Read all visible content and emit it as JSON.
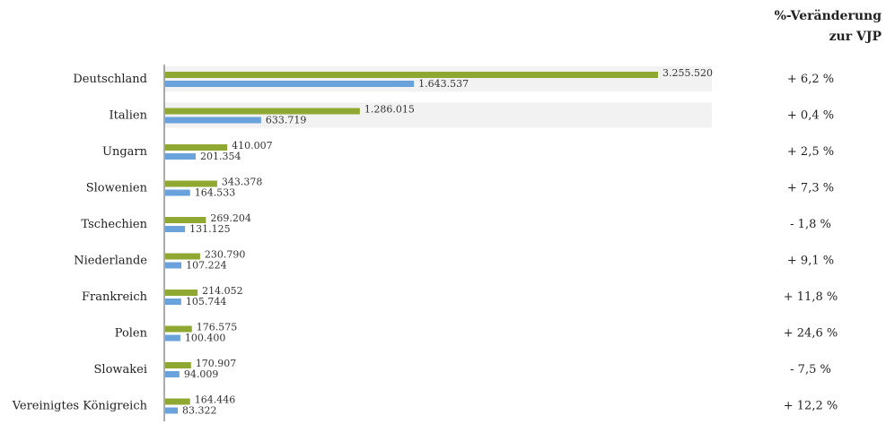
{
  "chart_data": {
    "type": "bar",
    "orientation": "horizontal",
    "change_header_line1": "%-Veränderung",
    "change_header_line2": "zur VJP",
    "categories": [
      "Deutschland",
      "Italien",
      "Ungarn",
      "Slowenien",
      "Tschechien",
      "Niederlande",
      "Frankreich",
      "Polen",
      "Slowakei",
      "Vereinigtes Königreich"
    ],
    "series": [
      {
        "color": "#8fa832",
        "values": [
          3255520,
          1286015,
          410007,
          343378,
          269204,
          230790,
          214052,
          176575,
          170907,
          164446
        ],
        "labels": [
          "3.255.520",
          "1.286.015",
          "410.007",
          "343.378",
          "269.204",
          "230.790",
          "214.052",
          "176.575",
          "170.907",
          "164.446"
        ]
      },
      {
        "color": "#6aa3dc",
        "values": [
          1643537,
          633719,
          201354,
          164533,
          131125,
          107224,
          105744,
          100400,
          94009,
          83322
        ],
        "labels": [
          "1.643.537",
          "633.719",
          "201.354",
          "164.533",
          "131.125",
          "107.224",
          "105.744",
          "100.400",
          "94.009",
          "83.322"
        ]
      }
    ],
    "changes": [
      "+ 6,2 %",
      "+ 0,4 %",
      "+ 2,5 %",
      "+ 7,3 %",
      "- 1,8 %",
      "+ 9,1 %",
      "+ 11,8 %",
      "+ 24,6 %",
      "- 7,5 %",
      "+ 12,2 %"
    ],
    "highlight_color": "#f2f2f2",
    "highlighted_rows": [
      0,
      1
    ],
    "grid": false,
    "legend": "none"
  }
}
